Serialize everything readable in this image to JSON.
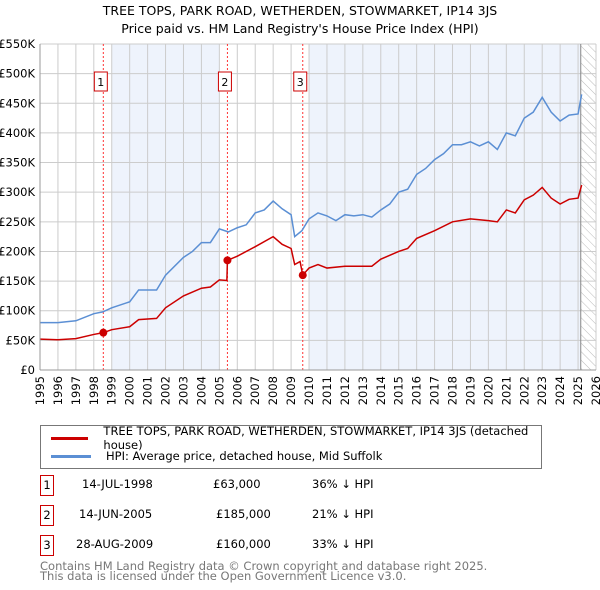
{
  "chart_data": {
    "type": "line",
    "title": "TREE TOPS, PARK ROAD, WETHERDEN, STOWMARKET, IP14 3JS",
    "subtitle": "Price paid vs. HM Land Registry's House Price Index (HPI)",
    "xlim": [
      1995,
      2026
    ],
    "ylim": [
      0,
      550000
    ],
    "x_ticks": [
      "1995",
      "1996",
      "1997",
      "1998",
      "1999",
      "2000",
      "2001",
      "2002",
      "2003",
      "2004",
      "2005",
      "2006",
      "2007",
      "2008",
      "2009",
      "2010",
      "2011",
      "2012",
      "2013",
      "2014",
      "2015",
      "2016",
      "2017",
      "2018",
      "2019",
      "2020",
      "2021",
      "2022",
      "2023",
      "2024",
      "2025",
      "2026"
    ],
    "y_ticks": [
      {
        "v": 0,
        "label": "£0"
      },
      {
        "v": 50000,
        "label": "£50K"
      },
      {
        "v": 100000,
        "label": "£100K"
      },
      {
        "v": 150000,
        "label": "£150K"
      },
      {
        "v": 200000,
        "label": "£200K"
      },
      {
        "v": 250000,
        "label": "£250K"
      },
      {
        "v": 300000,
        "label": "£300K"
      },
      {
        "v": 350000,
        "label": "£350K"
      },
      {
        "v": 400000,
        "label": "£400K"
      },
      {
        "v": 450000,
        "label": "£450K"
      },
      {
        "v": 500000,
        "label": "£500K"
      },
      {
        "v": 550000,
        "label": "£550K"
      }
    ],
    "series": [
      {
        "name": "TREE TOPS, PARK ROAD, WETHERDEN, STOWMARKET, IP14 3JS (detached house)",
        "color": "#cc0000",
        "x": [
          1995,
          1996,
          1997,
          1998,
          1998.53,
          1999,
          2000,
          2000.5,
          2001.5,
          2002,
          2003,
          2004,
          2004.5,
          2005,
          2005.42,
          2005.45,
          2006,
          2007,
          2008,
          2008.5,
          2009,
          2009.2,
          2009.5,
          2009.65,
          2010,
          2010.5,
          2011,
          2012,
          2013,
          2013.5,
          2014,
          2015,
          2015.5,
          2016,
          2017,
          2018,
          2019,
          2020,
          2020.5,
          2021,
          2021.5,
          2022,
          2022.5,
          2023,
          2023.5,
          2024,
          2024.5,
          2025,
          2025.2
        ],
        "y": [
          52000,
          51000,
          53000,
          60000,
          63000,
          68000,
          73000,
          85000,
          87000,
          105000,
          125000,
          138000,
          140000,
          152000,
          151000,
          185000,
          192000,
          208000,
          225000,
          212000,
          205000,
          178000,
          183000,
          160000,
          172000,
          178000,
          172000,
          175000,
          175000,
          175000,
          187000,
          200000,
          205000,
          222000,
          235000,
          250000,
          255000,
          252000,
          250000,
          270000,
          265000,
          287000,
          295000,
          308000,
          290000,
          280000,
          288000,
          290000,
          312000
        ]
      },
      {
        "name": "HPI: Average price, detached house, Mid Suffolk",
        "color": "#5b8fd4",
        "x": [
          1995,
          1996,
          1997,
          1998,
          1998.5,
          1999,
          2000,
          2000.5,
          2001.5,
          2002,
          2003,
          2003.5,
          2004,
          2004.5,
          2005,
          2005.5,
          2006,
          2006.5,
          2007,
          2007.5,
          2008,
          2008.5,
          2009,
          2009.2,
          2009.6,
          2010,
          2010.5,
          2011,
          2011.5,
          2012,
          2012.5,
          2013,
          2013.5,
          2014,
          2014.5,
          2015,
          2015.5,
          2016,
          2016.5,
          2017,
          2017.5,
          2018,
          2018.5,
          2019,
          2019.5,
          2020,
          2020.5,
          2021,
          2021.5,
          2022,
          2022.5,
          2023,
          2023.5,
          2024,
          2024.5,
          2025,
          2025.2
        ],
        "y": [
          80000,
          80000,
          83000,
          95000,
          98000,
          105000,
          115000,
          135000,
          135000,
          160000,
          190000,
          200000,
          215000,
          215000,
          238000,
          233000,
          240000,
          245000,
          265000,
          270000,
          285000,
          272000,
          262000,
          225000,
          235000,
          255000,
          265000,
          260000,
          252000,
          262000,
          260000,
          262000,
          258000,
          270000,
          280000,
          300000,
          305000,
          330000,
          340000,
          355000,
          365000,
          380000,
          380000,
          385000,
          378000,
          385000,
          372000,
          400000,
          395000,
          425000,
          435000,
          460000,
          435000,
          420000,
          430000,
          432000,
          465000
        ]
      }
    ],
    "sales": [
      {
        "label": "1",
        "x": 1998.53,
        "y": 63000,
        "date": "14-JUL-1998",
        "price": "£63,000",
        "hpi": "36% ↓ HPI"
      },
      {
        "label": "2",
        "x": 2005.45,
        "y": 185000,
        "date": "14-JUN-2005",
        "price": "£185,000",
        "hpi": "21% ↓ HPI"
      },
      {
        "label": "3",
        "x": 2009.65,
        "y": 160000,
        "date": "28-AUG-2009",
        "price": "£160,000",
        "hpi": "33% ↓ HPI"
      }
    ],
    "legend_placement": "below",
    "grid": true
  },
  "footer": {
    "line1": "Contains HM Land Registry data © Crown copyright and database right 2025.",
    "line2": "This data is licensed under the Open Government Licence v3.0."
  }
}
